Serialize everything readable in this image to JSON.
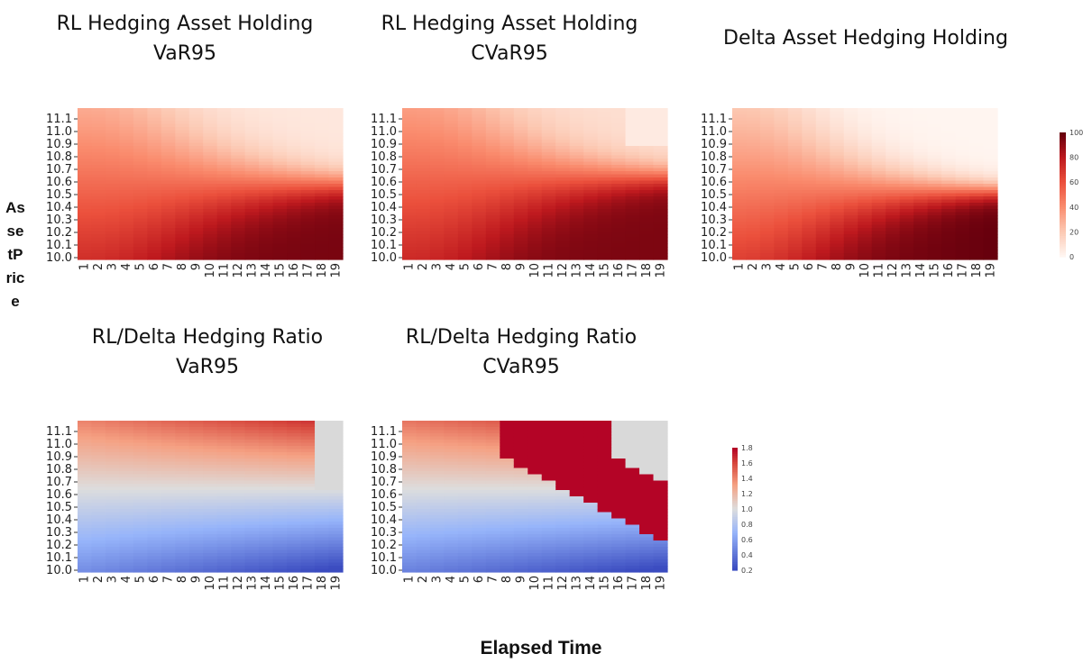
{
  "figure": {
    "y_axis_label": "AssetPrice",
    "x_axis_label": "Elapsed Time"
  },
  "colorbars": [
    {
      "ticks": [
        "100",
        "80",
        "60",
        "40",
        "20",
        "0"
      ],
      "scale": "Reds",
      "range": [
        0,
        100
      ]
    },
    {
      "ticks": [
        "1.8",
        "1.6",
        "1.4",
        "1.2",
        "1.0",
        "0.8",
        "0.6",
        "0.4",
        "0.2"
      ],
      "scale": "coolwarm",
      "range": [
        0.2,
        1.8
      ]
    }
  ],
  "chart_data": [
    {
      "type": "heatmap",
      "title": "RL Hedging Asset Holding\nVaR95",
      "x_ticks": [
        "1",
        "2",
        "3",
        "4",
        "5",
        "6",
        "7",
        "8",
        "9",
        "10",
        "11",
        "12",
        "13",
        "14",
        "15",
        "16",
        "17",
        "18",
        "19"
      ],
      "y_ticks": [
        "11.1",
        "11.0",
        "10.9",
        "10.8",
        "10.7",
        "10.6",
        "10.5",
        "10.4",
        "10.3",
        "10.2",
        "10.1",
        "10.0"
      ],
      "value_range": [
        0,
        100
      ],
      "colormap": "Reds",
      "pattern": "rl-holding-var"
    },
    {
      "type": "heatmap",
      "title": "RL Hedging Asset Holding\nCVaR95",
      "x_ticks": [
        "1",
        "2",
        "3",
        "4",
        "5",
        "6",
        "7",
        "8",
        "9",
        "10",
        "11",
        "12",
        "13",
        "14",
        "15",
        "16",
        "17",
        "18",
        "19"
      ],
      "y_ticks": [
        "11.1",
        "11.0",
        "10.9",
        "10.8",
        "10.7",
        "10.6",
        "10.5",
        "10.4",
        "10.3",
        "10.2",
        "10.1",
        "10.0"
      ],
      "value_range": [
        0,
        100
      ],
      "colormap": "Reds",
      "pattern": "rl-holding-cvar"
    },
    {
      "type": "heatmap",
      "title": "Delta Asset Hedging Holding",
      "x_ticks": [
        "1",
        "2",
        "3",
        "4",
        "5",
        "6",
        "7",
        "8",
        "9",
        "10",
        "11",
        "12",
        "13",
        "14",
        "15",
        "16",
        "17",
        "18",
        "19"
      ],
      "y_ticks": [
        "11.1",
        "11.0",
        "10.9",
        "10.8",
        "10.7",
        "10.6",
        "10.5",
        "10.4",
        "10.3",
        "10.2",
        "10.1",
        "10.0"
      ],
      "value_range": [
        0,
        100
      ],
      "colormap": "Reds",
      "pattern": "delta-holding"
    },
    {
      "type": "heatmap",
      "title": "RL/Delta Hedging Ratio\nVaR95",
      "x_ticks": [
        "1",
        "2",
        "3",
        "4",
        "5",
        "6",
        "7",
        "8",
        "9",
        "10",
        "11",
        "12",
        "13",
        "14",
        "15",
        "16",
        "17",
        "18",
        "19"
      ],
      "y_ticks": [
        "11.1",
        "11.0",
        "10.9",
        "10.8",
        "10.7",
        "10.6",
        "10.5",
        "10.4",
        "10.3",
        "10.2",
        "10.1",
        "10.0"
      ],
      "value_range": [
        0.2,
        1.8
      ],
      "colormap": "coolwarm",
      "pattern": "ratio-var"
    },
    {
      "type": "heatmap",
      "title": "RL/Delta Hedging Ratio\nCVaR95",
      "x_ticks": [
        "1",
        "2",
        "3",
        "4",
        "5",
        "6",
        "7",
        "8",
        "9",
        "10",
        "11",
        "12",
        "13",
        "14",
        "15",
        "16",
        "17",
        "18",
        "19"
      ],
      "y_ticks": [
        "11.1",
        "11.0",
        "10.9",
        "10.8",
        "10.7",
        "10.6",
        "10.5",
        "10.4",
        "10.3",
        "10.2",
        "10.1",
        "10.0"
      ],
      "value_range": [
        0.2,
        1.8
      ],
      "colormap": "coolwarm",
      "pattern": "ratio-cvar"
    }
  ]
}
